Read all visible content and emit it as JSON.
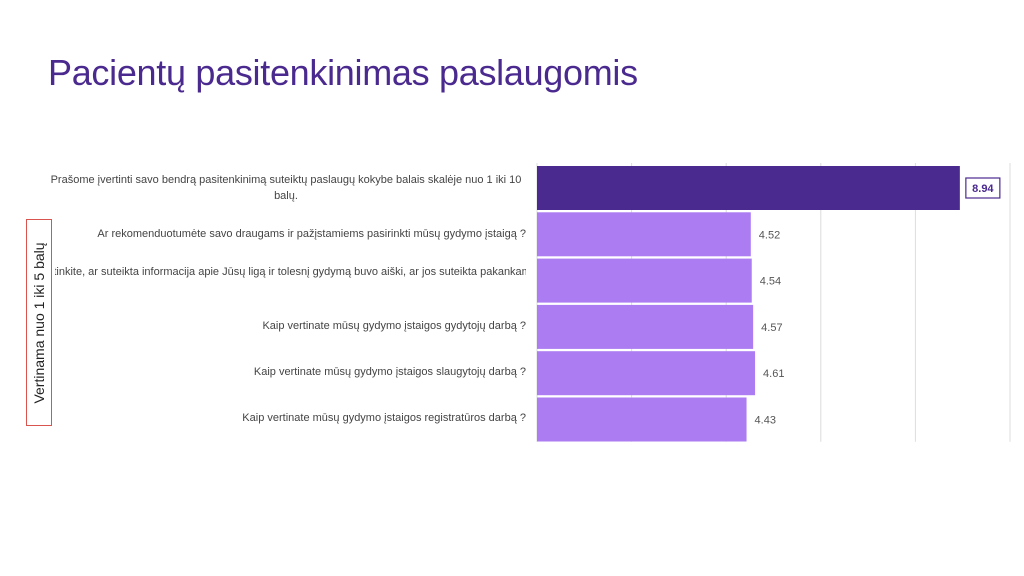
{
  "title": "Pacientų pasitenkinimas paslaugomis",
  "side_note": "Vertinama nuo 1 iki 5 balų",
  "colors": {
    "title": "#4b2a8f",
    "bar_primary": "#4b2a8f",
    "bar_secondary": "#ab7cf2",
    "highlight_box": "#d9534f"
  },
  "chart_data": {
    "type": "bar",
    "orientation": "horizontal",
    "categories": [
      "Prašome įvertinti savo bendrą pasitenkinimą suteiktų paslaugų kokybe balais skalėje nuo 1 iki 10 balų.",
      "Ar rekomenduotumėte savo draugams ir pažįstamiems pasirinkti mūsų gydymo įstaigą ?",
      "Įvertinkite, ar suteikta informacija apie Jūsų ligą ir tolesnį gydymą buvo aiški, ar jos suteikta pakankamai ?",
      "Kaip vertinate mūsų gydymo įstaigos gydytojų darbą ?",
      "Kaip vertinate mūsų gydymo įstaigos slaugytojų darbą ?",
      "Kaip vertinate mūsų gydymo įstaigos registratūros darbą ?"
    ],
    "values": [
      8.94,
      4.52,
      4.54,
      4.57,
      4.61,
      4.43
    ],
    "value_labels": [
      "8.94",
      "4.52",
      "4.54",
      "4.57",
      "4.61",
      "4.43"
    ],
    "xlim": [
      0,
      10
    ],
    "grid": true,
    "legend": "none"
  }
}
